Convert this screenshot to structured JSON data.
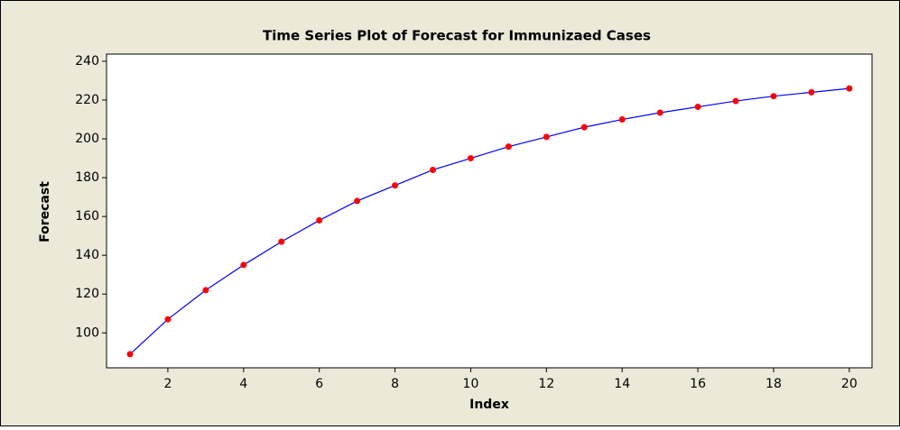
{
  "chart_data": {
    "type": "line",
    "title": "Time Series Plot of Forecast for Immunizaed Cases",
    "x_label": "Index",
    "y_label": "Forecast",
    "x": [
      1,
      2,
      3,
      4,
      5,
      6,
      7,
      8,
      9,
      10,
      11,
      12,
      13,
      14,
      15,
      16,
      17,
      18,
      19,
      20
    ],
    "values": [
      89,
      107,
      122,
      135,
      147,
      158,
      168,
      176,
      184,
      190,
      196,
      201,
      206,
      210,
      213.5,
      216.5,
      219.5,
      222,
      224,
      226
    ],
    "color": "#0000ff",
    "marker_color": "#ff0000",
    "xlim": [
      0.38,
      20.6
    ],
    "xticks": [
      2,
      4,
      6,
      8,
      10,
      12,
      14,
      16,
      18,
      20
    ],
    "ylim": [
      82,
      243.7
    ],
    "yticks": [
      100,
      120,
      140,
      160,
      180,
      200,
      220,
      240
    ],
    "grid": false
  }
}
